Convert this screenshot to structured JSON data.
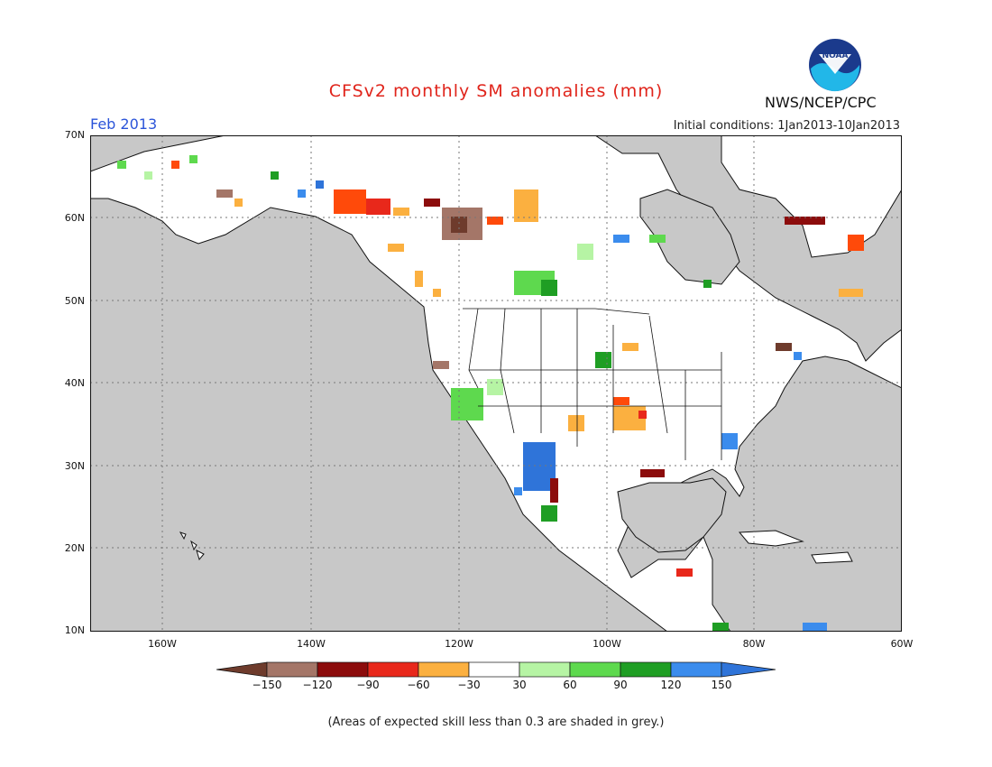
{
  "title": "CFSv2 monthly SM anomalies (mm)",
  "month": "Feb 2013",
  "initial_conditions": "Initial conditions: 1Jan2013-10Jan2013",
  "agency": "NWS/NCEP/CPC",
  "logo_text": "NOAA",
  "lat_labels": [
    "70N",
    "60N",
    "50N",
    "40N",
    "30N",
    "20N",
    "10N"
  ],
  "lon_labels": [
    "160W",
    "140W",
    "120W",
    "100W",
    "80W",
    "60W"
  ],
  "colorbar": {
    "labels": [
      "−150",
      "−120",
      "−90",
      "−60",
      "−30",
      "30",
      "60",
      "90",
      "120",
      "150"
    ],
    "colors": [
      "#6e3b2c",
      "#a47668",
      "#8c0c0c",
      "#e8281b",
      "#ff4a0a",
      "#fbb040",
      "#ffffff",
      "#b6f4a4",
      "#5ed94e",
      "#1f9e24",
      "#3b8ced",
      "#2f74d9"
    ]
  },
  "colors": {
    "ocean": "#c8c8c8",
    "land": "#ffffff",
    "coast": "#111111"
  },
  "footnote": "(Areas of expected skill less than 0.3 are shaded in grey.)"
}
